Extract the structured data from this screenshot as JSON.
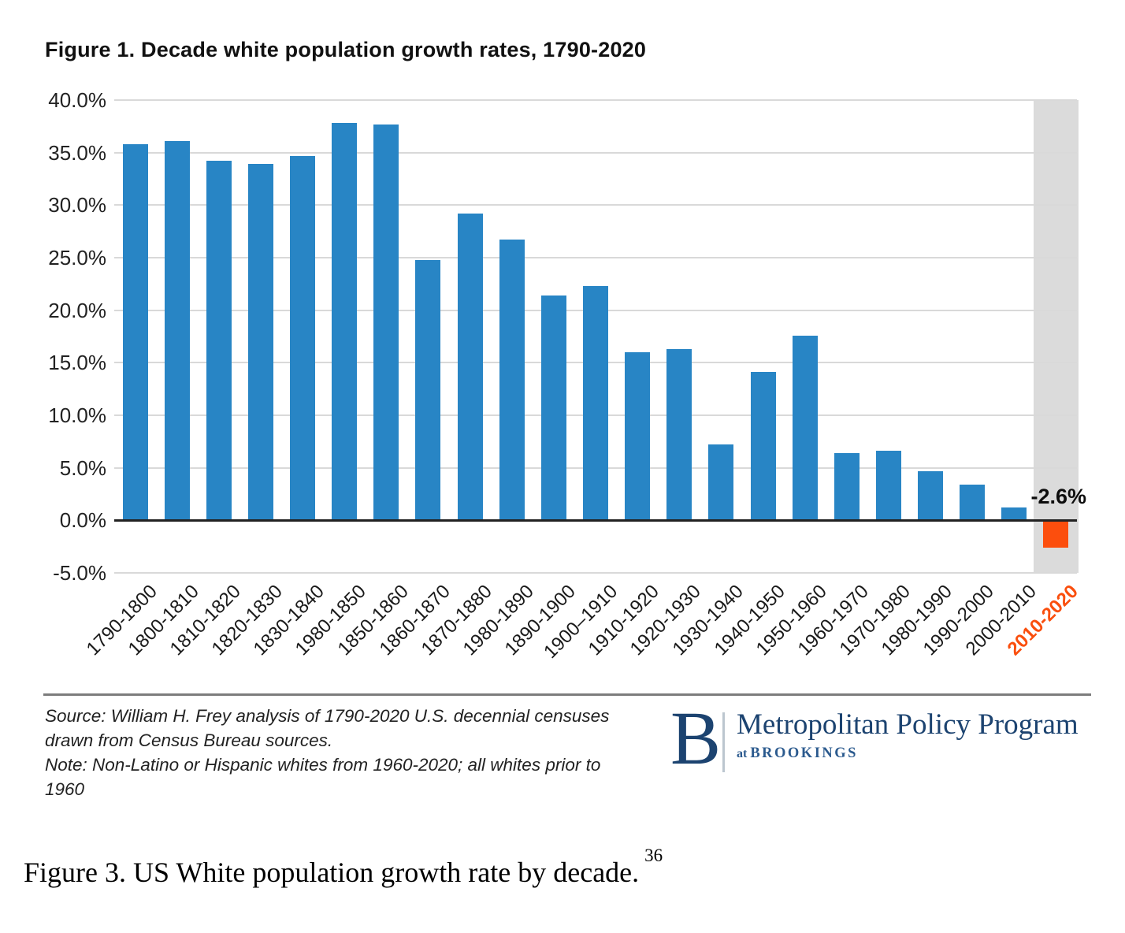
{
  "chart_data": {
    "type": "bar",
    "title": "Figure 1. Decade white population growth rates, 1790-2020",
    "categories": [
      "1790-1800",
      "1800-1810",
      "1810-1820",
      "1820-1830",
      "1830-1840",
      "1980-1850",
      "1850-1860",
      "1860-1870",
      "1870-1880",
      "1980-1890",
      "1890-1900",
      "1900–1910",
      "1910-1920",
      "1920-1930",
      "1930-1940",
      "1940-1950",
      "1950-1960",
      "1960-1970",
      "1970-1980",
      "1980-1990",
      "1990-2000",
      "2000-2010",
      "2010-2020"
    ],
    "values": [
      35.8,
      36.1,
      34.2,
      33.9,
      34.7,
      37.8,
      37.7,
      24.8,
      29.2,
      26.7,
      21.4,
      22.3,
      16.0,
      16.3,
      7.2,
      14.1,
      17.6,
      6.4,
      6.6,
      4.7,
      3.4,
      1.2,
      -2.6
    ],
    "ylim": [
      -5,
      40
    ],
    "ytick_step": 5,
    "ytick_labels": [
      "40.0%",
      "35.0%",
      "30.0%",
      "25.0%",
      "20.0%",
      "15.0%",
      "10.0%",
      "5.0%",
      "0.0%",
      "-5.0%"
    ],
    "grid": true,
    "legend": "none",
    "annotation_label": "-2.6%",
    "highlight_category": "2010-2020",
    "colors": {
      "bar": "#2885C5",
      "highlight_bar": "#FC4E0D",
      "highlight_label": "#FA4F0E",
      "band": "#DBDBDB",
      "gridline": "#D9D9D9",
      "axis": "#222222"
    }
  },
  "footer": {
    "source_lines": [
      "Source: William H. Frey analysis of 1790-2020 U.S. decennial censuses",
      "drawn from Census Bureau sources.",
      "Note: Non-Latino or Hispanic whites from 1960-2020; all whites prior to",
      "1960"
    ],
    "logo": {
      "letter": "B",
      "program": "Metropolitan Policy Program",
      "sub_prefix": "at",
      "sub_name": "BROOKINGS"
    }
  },
  "caption": {
    "text": "Figure 3. US White population growth rate by decade.",
    "footnote_ref": "36"
  }
}
